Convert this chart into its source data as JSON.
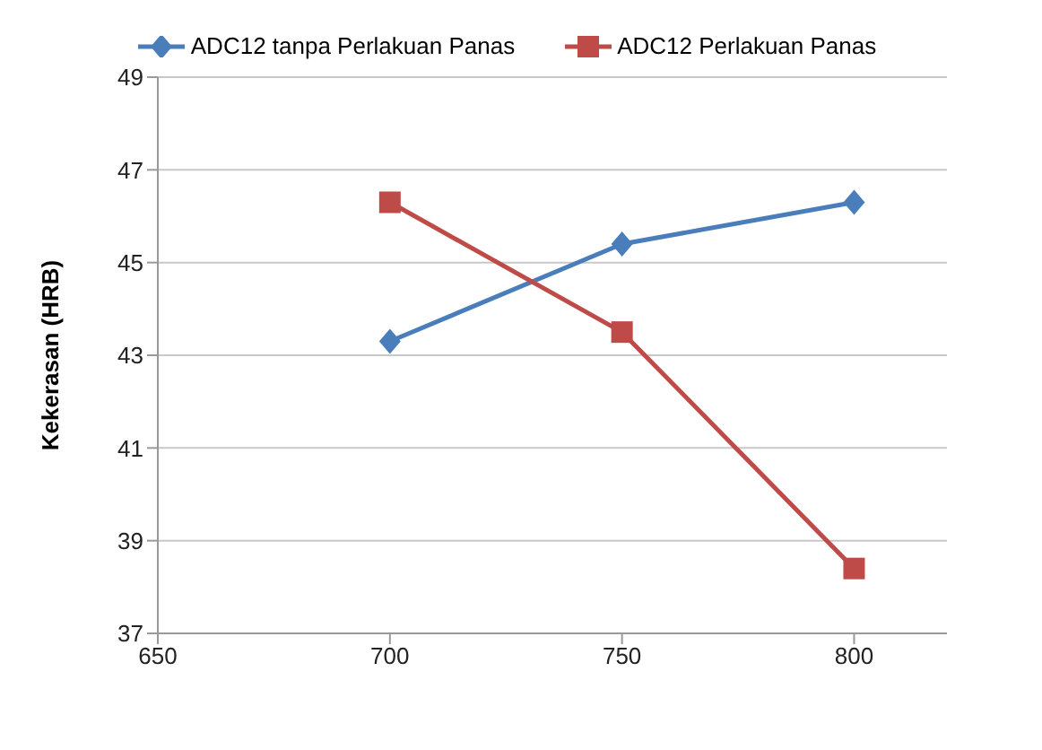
{
  "chart_data": {
    "type": "line",
    "ylabel": "Kekerasan (HRB)",
    "x": [
      700,
      750,
      800
    ],
    "series": [
      {
        "name": "ADC12 tanpa Perlakuan Panas",
        "color": "#4a7ebb",
        "values": [
          43.3,
          45.4,
          46.3
        ],
        "marker": "diamond"
      },
      {
        "name": "ADC12 Perlakuan Panas",
        "color": "#be4b48",
        "values": [
          46.3,
          43.5,
          38.4
        ],
        "marker": "square"
      }
    ],
    "xlim": [
      650,
      820
    ],
    "xticks": [
      650,
      700,
      750,
      800
    ],
    "ylim": [
      37,
      49
    ],
    "yticks": [
      37,
      39,
      41,
      43,
      45,
      47,
      49
    ],
    "grid": "y",
    "legend": "top",
    "line_style": "solid"
  }
}
